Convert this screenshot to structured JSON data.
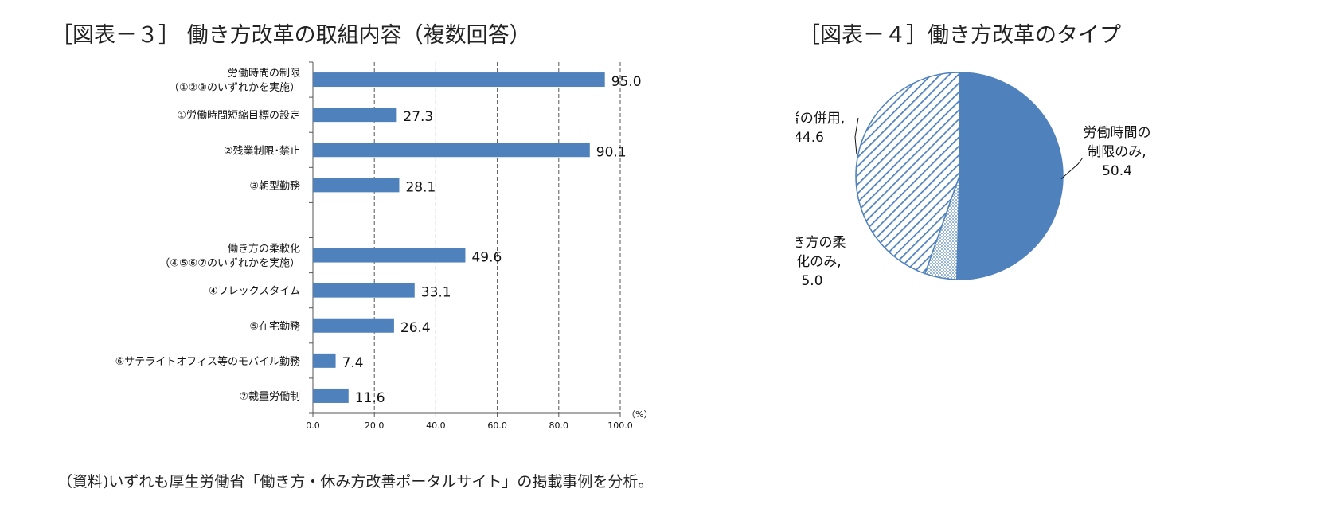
{
  "chart_data": [
    {
      "type": "bar",
      "orientation": "horizontal",
      "title": "［図表－３］ 働き方改革の取組内容（複数回答）",
      "categories": [
        [
          "労働時間の制限",
          "（①②③のいずれかを実施）"
        ],
        [
          "①労働時間短縮目標の設定"
        ],
        [
          "②残業制限･禁止"
        ],
        [
          "③朝型勤務"
        ],
        [],
        [
          "働き方の柔軟化",
          "（④⑤⑥⑦のいずれかを実施）"
        ],
        [
          "④フレックスタイム"
        ],
        [
          "⑤在宅勤務"
        ],
        [
          "⑥サテライトオフィス等のモバイル勤務"
        ],
        [
          "⑦裁量労働制"
        ]
      ],
      "values": [
        95.0,
        27.3,
        90.1,
        28.1,
        null,
        49.6,
        33.1,
        26.4,
        7.4,
        11.6
      ],
      "value_labels": [
        "95.0",
        "27.3",
        "90.1",
        "28.1",
        "",
        "49.6",
        "33.1",
        "26.4",
        "7.4",
        "11.6"
      ],
      "xlim": [
        0,
        100
      ],
      "ticks": [
        "0.0",
        "20.0",
        "40.0",
        "60.0",
        "80.0",
        "100.0"
      ],
      "unit": "（%）",
      "grid": "vertical-dashed",
      "bar_color": "#4f81bd"
    },
    {
      "type": "pie",
      "title": "［図表－４］働き方改革のタイプ",
      "slices": [
        {
          "label": [
            "労働時間の",
            "制限のみ,"
          ],
          "value": 50.4,
          "value_label": "50.4",
          "fill": "solid",
          "color": "#4f81bd"
        },
        {
          "label": [
            "働き方の柔",
            "軟化のみ,"
          ],
          "value": 5.0,
          "value_label": "5.0",
          "fill": "dotted",
          "color": "#4f81bd"
        },
        {
          "label": [
            "両者の併用,"
          ],
          "value": 44.6,
          "value_label": "44.6",
          "fill": "diagonal-hatch",
          "color": "#4f81bd"
        }
      ]
    }
  ],
  "source_note": "（資料)いずれも厚生労働省「働き方・休み方改善ポータルサイト」の掲載事例を分析。"
}
